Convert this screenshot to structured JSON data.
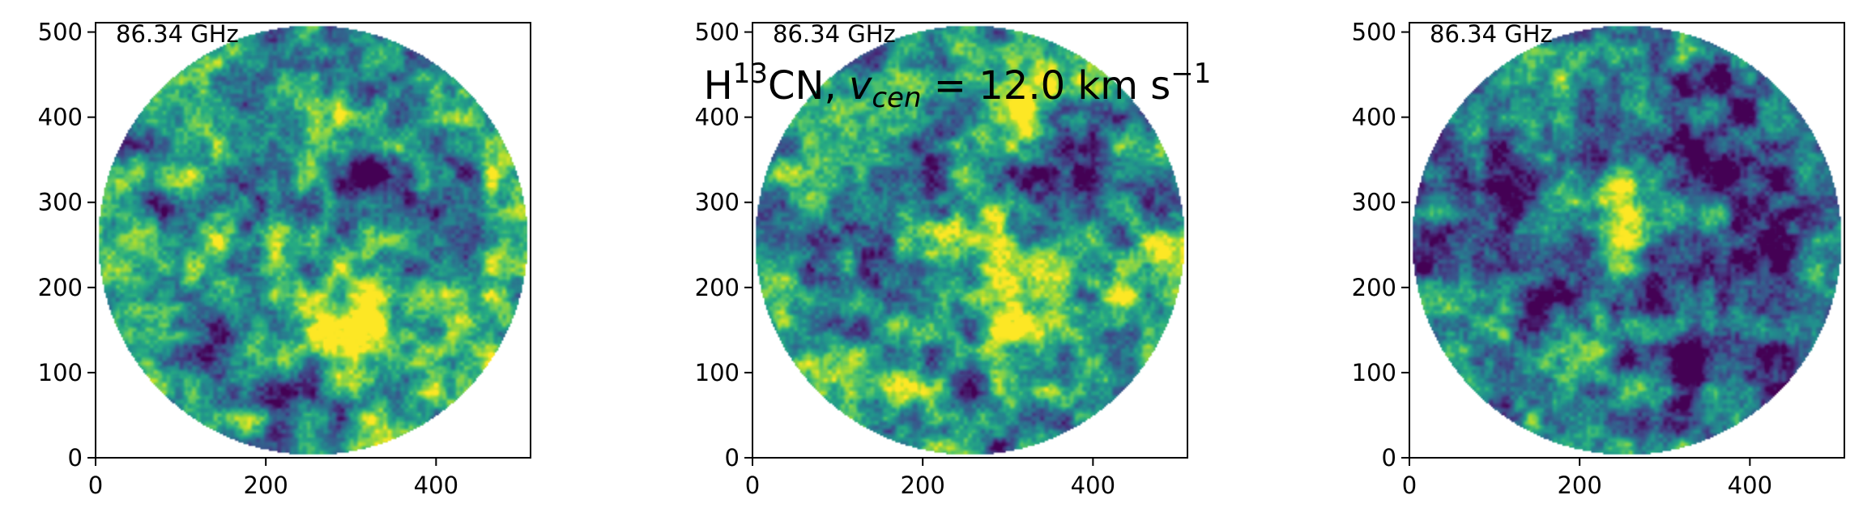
{
  "figure": {
    "title_parts": {
      "prefix": "H",
      "isotope": "13",
      "mid": "CN, ",
      "var": "v",
      "var_sub": "cen",
      "eq_value": " = 12.0 km s",
      "unit_exp": "−1"
    }
  },
  "chart_data": [
    {
      "type": "heatmap",
      "label": "86.34 GHz",
      "xlim": [
        0,
        511
      ],
      "ylim": [
        0,
        511
      ],
      "xticks": [
        0,
        200,
        400
      ],
      "yticks": [
        0,
        100,
        200,
        300,
        400,
        500
      ],
      "colormap": "viridis",
      "field": {
        "seed": 11,
        "bright": [
          [
            300,
            170,
            1.0
          ],
          [
            290,
            140,
            0.8
          ],
          [
            230,
            340,
            0.5
          ],
          [
            420,
            210,
            0.5
          ],
          [
            170,
            230,
            0.4
          ],
          [
            360,
            40,
            0.5
          ]
        ],
        "dark": [
          [
            330,
            325,
            0.9
          ],
          [
            260,
            40,
            0.8
          ],
          [
            120,
            170,
            0.6
          ],
          [
            200,
            300,
            0.6
          ],
          [
            440,
            260,
            0.7
          ]
        ],
        "level": 0.55
      }
    },
    {
      "type": "heatmap",
      "label": "86.34 GHz",
      "xlim": [
        0,
        511
      ],
      "ylim": [
        0,
        511
      ],
      "xticks": [
        0,
        200,
        400
      ],
      "yticks": [
        0,
        100,
        200,
        300,
        400,
        500
      ],
      "colormap": "viridis",
      "field": {
        "seed": 23,
        "bright": [
          [
            310,
            420,
            1.0
          ],
          [
            320,
            170,
            0.9
          ],
          [
            300,
            210,
            0.8
          ],
          [
            240,
            270,
            0.7
          ],
          [
            430,
            200,
            0.5
          ],
          [
            170,
            120,
            0.5
          ]
        ],
        "dark": [
          [
            350,
            325,
            0.9
          ],
          [
            170,
            300,
            0.7
          ],
          [
            250,
            40,
            0.7
          ],
          [
            100,
            180,
            0.6
          ],
          [
            360,
            120,
            0.6
          ]
        ],
        "level": 0.55
      }
    },
    {
      "type": "heatmap",
      "label": "86.34 GHz",
      "xlim": [
        0,
        511
      ],
      "ylim": [
        0,
        511
      ],
      "xticks": [
        0,
        200,
        400
      ],
      "yticks": [
        0,
        100,
        200,
        300,
        400,
        500
      ],
      "colormap": "viridis",
      "field": {
        "seed": 37,
        "bright": [
          [
            245,
            295,
            1.0
          ],
          [
            240,
            245,
            0.7
          ],
          [
            330,
            280,
            0.6
          ]
        ],
        "dark": [
          [
            355,
            330,
            0.8
          ],
          [
            360,
            130,
            0.8
          ],
          [
            200,
            200,
            0.6
          ],
          [
            100,
            260,
            0.5
          ],
          [
            420,
            250,
            0.4
          ]
        ],
        "level": 0.38
      }
    }
  ]
}
